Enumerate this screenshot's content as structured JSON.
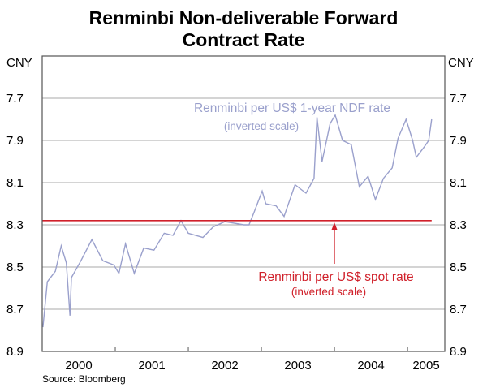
{
  "chart_data": {
    "type": "line",
    "title": [
      "Renminbi Non-deliverable Forward",
      "Contract Rate"
    ],
    "ylabel_left": "CNY",
    "ylabel_right": "CNY",
    "y_inverted": true,
    "ylim": [
      7.5,
      8.9
    ],
    "yticks": [
      "7.7",
      "7.9",
      "8.1",
      "8.3",
      "8.5",
      "8.7",
      "8.9"
    ],
    "ytick_values": [
      7.7,
      7.9,
      8.1,
      8.3,
      8.5,
      8.7,
      8.9
    ],
    "xlim": [
      2000.0,
      2005.51
    ],
    "xtick_boundaries": [
      2001,
      2002,
      2003,
      2004,
      2005
    ],
    "xlabels": [
      "2000",
      "2001",
      "2002",
      "2003",
      "2004",
      "2005"
    ],
    "grid": true,
    "source": "Source: Bloomberg",
    "series": [
      {
        "name": "Renminbi per US$ 1-year NDF rate",
        "note": "(inverted scale)",
        "color": "#9aa0cc",
        "x": [
          2000.01,
          2000.07,
          2000.18,
          2000.26,
          2000.33,
          2000.38,
          2000.4,
          2000.53,
          2000.68,
          2000.83,
          2000.98,
          2001.05,
          2001.14,
          2001.26,
          2001.39,
          2001.53,
          2001.67,
          2001.79,
          2001.9,
          2002.0,
          2002.2,
          2002.34,
          2002.5,
          2002.76,
          2002.83,
          2002.9,
          2003.01,
          2003.06,
          2003.2,
          2003.31,
          2003.46,
          2003.61,
          2003.72,
          2003.76,
          2003.83,
          2003.94,
          2004.01,
          2004.11,
          2004.23,
          2004.34,
          2004.46,
          2004.56,
          2004.67,
          2004.79,
          2004.87,
          2004.98,
          2005.07,
          2005.12,
          2005.23,
          2005.29,
          2005.33
        ],
        "y": [
          8.785,
          8.57,
          8.52,
          8.4,
          8.48,
          8.73,
          8.55,
          8.47,
          8.37,
          8.47,
          8.49,
          8.53,
          8.39,
          8.53,
          8.41,
          8.42,
          8.34,
          8.35,
          8.28,
          8.34,
          8.36,
          8.31,
          8.285,
          8.3,
          8.3,
          8.24,
          8.14,
          8.2,
          8.21,
          8.26,
          8.11,
          8.15,
          8.08,
          7.79,
          8.0,
          7.82,
          7.78,
          7.9,
          7.92,
          8.12,
          8.07,
          8.18,
          8.08,
          8.03,
          7.89,
          7.8,
          7.9,
          7.98,
          7.93,
          7.9,
          7.8
        ]
      },
      {
        "name": "Renminbi per US$ spot rate",
        "note": "(inverted scale)",
        "color": "#d0202a",
        "x": [
          2000.0,
          2005.33
        ],
        "y": [
          8.28,
          8.28
        ]
      }
    ]
  }
}
